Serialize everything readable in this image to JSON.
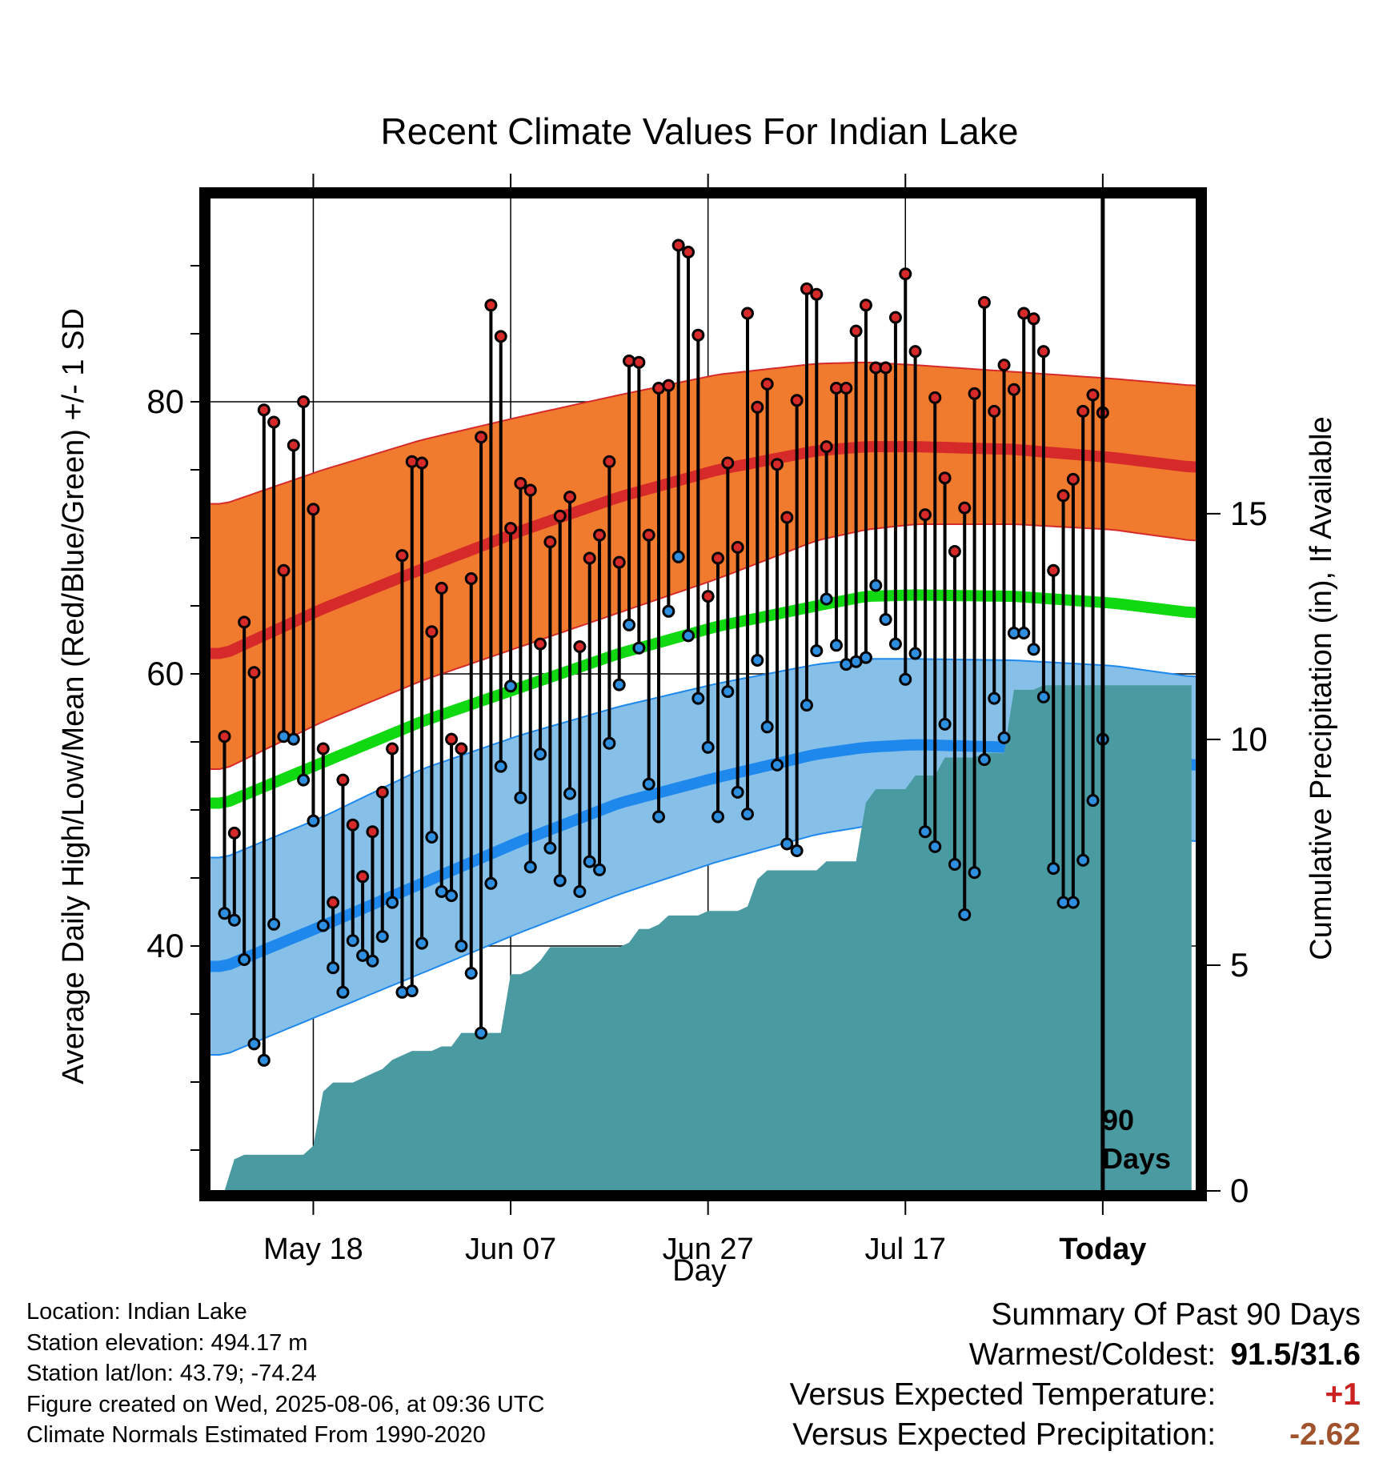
{
  "chart_data": {
    "type": "line",
    "title": "Recent Climate Values For Indian Lake",
    "xlabel": "Day",
    "ylabel": "Average Daily High/Low/Mean (Red/Blue/Green) +/- 1 SD",
    "y2label": "Cumulative Precipitation (in), If Available",
    "ylim": [
      22,
      95
    ],
    "y2lim": [
      0,
      22
    ],
    "y_ticks": [
      40,
      60,
      80
    ],
    "y2_ticks": [
      0,
      5,
      10,
      15
    ],
    "x_ticks": [
      {
        "day": 9,
        "label": "May 18"
      },
      {
        "day": 29,
        "label": "Jun 07"
      },
      {
        "day": 49,
        "label": "Jun 27"
      },
      {
        "day": 69,
        "label": "Jul 17"
      },
      {
        "day": 89,
        "label": "Today"
      }
    ],
    "xlim": [
      -1.5,
      98.5
    ],
    "grid": true,
    "marker_label": "90 Days",
    "marker_day": 89,
    "normals": {
      "days": [
        0,
        10,
        20,
        30,
        40,
        50,
        60,
        65,
        70,
        80,
        90,
        98
      ],
      "high_upper": [
        72.5,
        75.0,
        77.2,
        78.9,
        80.5,
        82.0,
        82.8,
        82.9,
        82.7,
        82.2,
        81.7,
        81.2
      ],
      "high_mean": [
        61.5,
        64.8,
        67.7,
        70.5,
        73.0,
        75.0,
        76.4,
        76.7,
        76.7,
        76.5,
        75.9,
        75.2
      ],
      "high_lower": [
        53.0,
        56.5,
        59.5,
        62.0,
        64.5,
        67.0,
        69.8,
        70.6,
        71.0,
        71.0,
        70.6,
        69.8
      ],
      "mean": [
        50.5,
        53.5,
        56.5,
        59.0,
        61.5,
        63.5,
        65.0,
        65.7,
        65.8,
        65.7,
        65.2,
        64.5
      ],
      "low_upper": [
        46.5,
        49.5,
        53.0,
        55.5,
        57.6,
        59.3,
        60.7,
        61.1,
        61.1,
        61.0,
        60.6,
        59.8
      ],
      "low_mean": [
        38.5,
        41.5,
        44.6,
        47.7,
        50.5,
        52.4,
        54.1,
        54.6,
        54.8,
        54.6,
        54.1,
        53.3
      ],
      "low_lower": [
        32.0,
        35.0,
        38.0,
        41.0,
        43.8,
        46.2,
        48.2,
        48.8,
        49.0,
        49.0,
        48.7,
        47.7
      ]
    },
    "series": [
      {
        "name": "High",
        "values": [
          55.4,
          48.3,
          63.8,
          60.1,
          79.4,
          78.5,
          67.6,
          76.8,
          80.0,
          72.1,
          54.5,
          43.2,
          52.2,
          48.9,
          45.1,
          48.4,
          51.3,
          54.5,
          68.7,
          75.6,
          75.5,
          63.1,
          66.3,
          55.2,
          54.5,
          67.0,
          77.4,
          87.1,
          84.8,
          70.7,
          74.0,
          73.5,
          62.2,
          69.7,
          71.6,
          73.0,
          62.0,
          68.5,
          70.2,
          75.6,
          68.2,
          83.0,
          82.9,
          70.2,
          81.0,
          81.2,
          91.5,
          91.0,
          84.9,
          65.7,
          68.5,
          75.5,
          69.3,
          86.5,
          79.6,
          81.3,
          75.4,
          71.5,
          80.1,
          88.3,
          87.9,
          76.7,
          81.0,
          81.0,
          85.2,
          87.1,
          82.5,
          82.5,
          86.2,
          89.4,
          83.7,
          71.7,
          80.3,
          74.4,
          69.0,
          72.2,
          80.6,
          87.3,
          79.3,
          82.7,
          80.9,
          86.5,
          86.1,
          83.7,
          67.6,
          73.1,
          74.3,
          79.3,
          80.5,
          79.2
        ]
      },
      {
        "name": "Low",
        "values": [
          42.4,
          41.9,
          39.0,
          32.8,
          31.6,
          41.6,
          55.4,
          55.2,
          52.2,
          49.2,
          41.5,
          38.4,
          36.6,
          40.4,
          39.3,
          38.9,
          40.7,
          43.2,
          36.6,
          36.7,
          40.2,
          48.0,
          44.0,
          43.7,
          40.0,
          38.0,
          33.6,
          44.6,
          53.2,
          59.1,
          50.9,
          45.8,
          54.1,
          47.2,
          44.8,
          51.2,
          44.0,
          46.2,
          45.6,
          54.9,
          59.2,
          63.6,
          61.9,
          51.9,
          49.5,
          64.6,
          68.6,
          62.8,
          58.2,
          54.6,
          49.5,
          58.7,
          51.3,
          49.7,
          61.0,
          56.1,
          53.3,
          47.5,
          47.0,
          57.7,
          61.7,
          65.5,
          62.1,
          60.7,
          60.9,
          61.2,
          66.5,
          64.0,
          62.2,
          59.6,
          61.5,
          48.4,
          47.3,
          56.3,
          46.0,
          42.3,
          45.4,
          53.7,
          58.2,
          55.3,
          63.0,
          63.0,
          61.8,
          58.3,
          45.7,
          43.2,
          43.2,
          46.3,
          50.7,
          55.2
        ]
      },
      {
        "name": "Cumulative Precipitation",
        "values": [
          0.0,
          0.7,
          0.8,
          0.8,
          0.8,
          0.8,
          0.8,
          0.8,
          0.8,
          1.0,
          2.2,
          2.4,
          2.4,
          2.4,
          2.5,
          2.6,
          2.7,
          2.9,
          3.0,
          3.1,
          3.1,
          3.1,
          3.2,
          3.2,
          3.5,
          3.5,
          3.5,
          3.5,
          3.5,
          4.8,
          4.8,
          4.9,
          5.1,
          5.4,
          5.4,
          5.4,
          5.4,
          5.4,
          5.4,
          5.4,
          5.4,
          5.5,
          5.8,
          5.8,
          5.9,
          6.1,
          6.1,
          6.1,
          6.1,
          6.2,
          6.2,
          6.2,
          6.2,
          6.3,
          6.9,
          7.1,
          7.1,
          7.1,
          7.1,
          7.1,
          7.1,
          7.3,
          7.3,
          7.3,
          7.3,
          8.6,
          8.9,
          8.9,
          8.9,
          8.9,
          9.2,
          9.2,
          9.2,
          9.6,
          9.6,
          9.6,
          9.6,
          9.7,
          9.7,
          9.7,
          11.1,
          11.1,
          11.1,
          11.2,
          11.2,
          11.2,
          11.2,
          11.2,
          11.2,
          11.2,
          11.2,
          11.2,
          11.2,
          11.2,
          11.2,
          11.2,
          11.2,
          11.2,
          11.2
        ]
      }
    ]
  },
  "colors": {
    "high_band": "#f07a2e",
    "high_line": "#d62a2a",
    "mean_line": "#11d911",
    "low_band": "#86c0e8",
    "low_line": "#1e88ec",
    "precip": "#4a9aa2",
    "high_point": "#d62a2a",
    "low_point": "#2e8fe0"
  },
  "info": {
    "location": "Location: Indian Lake",
    "elevation": "Station elevation: 494.17 m",
    "latlon": "Station lat/lon: 43.79; -74.24",
    "created": "Figure created on Wed, 2025-08-06, at 09:36 UTC",
    "normals": "Climate Normals Estimated From 1990-2020"
  },
  "summary": {
    "title": "Summary Of Past 90 Days",
    "warmest_label": "Warmest/Coldest:",
    "warmest_value": "91.5/31.6",
    "temp_label": "Versus Expected Temperature:",
    "temp_value": "+1",
    "precip_label": "Versus Expected Precipitation:",
    "precip_value": "-2.62"
  }
}
